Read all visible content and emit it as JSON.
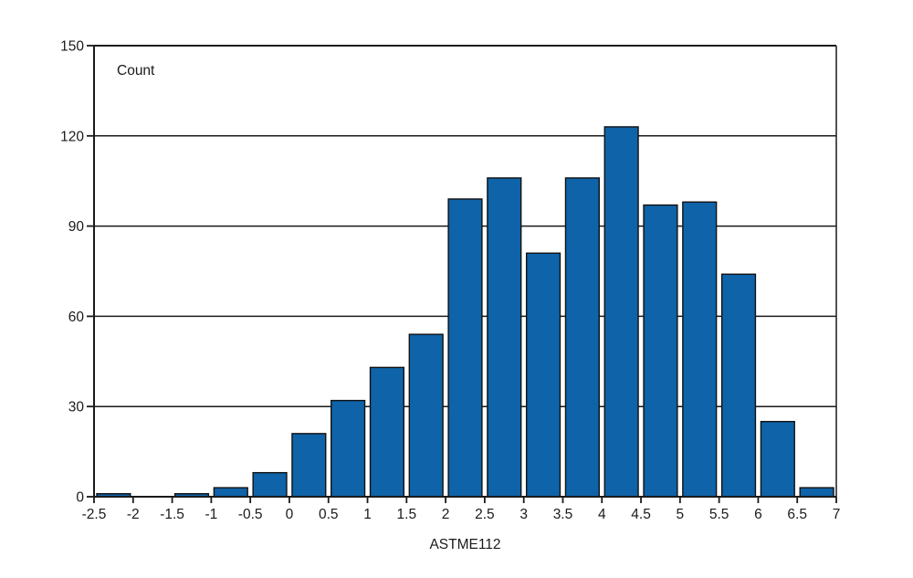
{
  "chart_data": {
    "type": "bar",
    "subtype": "histogram",
    "title": "",
    "inner_label": "Count",
    "xlabel": "ASTME112",
    "ylabel": "",
    "xlim": [
      -2.5,
      7
    ],
    "ylim": [
      0,
      150
    ],
    "grid": true,
    "legend_position": "none",
    "x_tick_labels": [
      "-2.5",
      "-2",
      "-1.5",
      "-1",
      "-0.5",
      "0",
      "0.5",
      "1",
      "1.5",
      "2",
      "2.5",
      "3",
      "3.5",
      "4",
      "4.5",
      "5",
      "5.5",
      "6",
      "6.5",
      "7"
    ],
    "y_tick_labels": [
      "0",
      "30",
      "60",
      "90",
      "120",
      "150"
    ],
    "y_ticks": [
      0,
      30,
      60,
      90,
      120,
      150
    ],
    "bin_width": 0.5,
    "bins": [
      {
        "x0": -2.5,
        "x1": -2.0,
        "count": 1
      },
      {
        "x0": -2.0,
        "x1": -1.5,
        "count": 0
      },
      {
        "x0": -1.5,
        "x1": -1.0,
        "count": 1
      },
      {
        "x0": -1.0,
        "x1": -0.5,
        "count": 3
      },
      {
        "x0": -0.5,
        "x1": 0.0,
        "count": 8
      },
      {
        "x0": 0.0,
        "x1": 0.5,
        "count": 21
      },
      {
        "x0": 0.5,
        "x1": 1.0,
        "count": 32
      },
      {
        "x0": 1.0,
        "x1": 1.5,
        "count": 43
      },
      {
        "x0": 1.5,
        "x1": 2.0,
        "count": 54
      },
      {
        "x0": 2.0,
        "x1": 2.5,
        "count": 99
      },
      {
        "x0": 2.5,
        "x1": 3.0,
        "count": 106
      },
      {
        "x0": 3.0,
        "x1": 3.5,
        "count": 81
      },
      {
        "x0": 3.5,
        "x1": 4.0,
        "count": 106
      },
      {
        "x0": 4.0,
        "x1": 4.5,
        "count": 123
      },
      {
        "x0": 4.5,
        "x1": 5.0,
        "count": 97
      },
      {
        "x0": 5.0,
        "x1": 5.5,
        "count": 98
      },
      {
        "x0": 5.5,
        "x1": 6.0,
        "count": 74
      },
      {
        "x0": 6.0,
        "x1": 6.5,
        "count": 25
      },
      {
        "x0": 6.5,
        "x1": 7.0,
        "count": 3
      }
    ],
    "colors": {
      "bar_fill": "#0F63A8",
      "bar_stroke": "#111111",
      "axis": "#1a1a1a",
      "gridline": "#1a1a1a",
      "text": "#1a1a1a",
      "background": "#ffffff"
    }
  }
}
